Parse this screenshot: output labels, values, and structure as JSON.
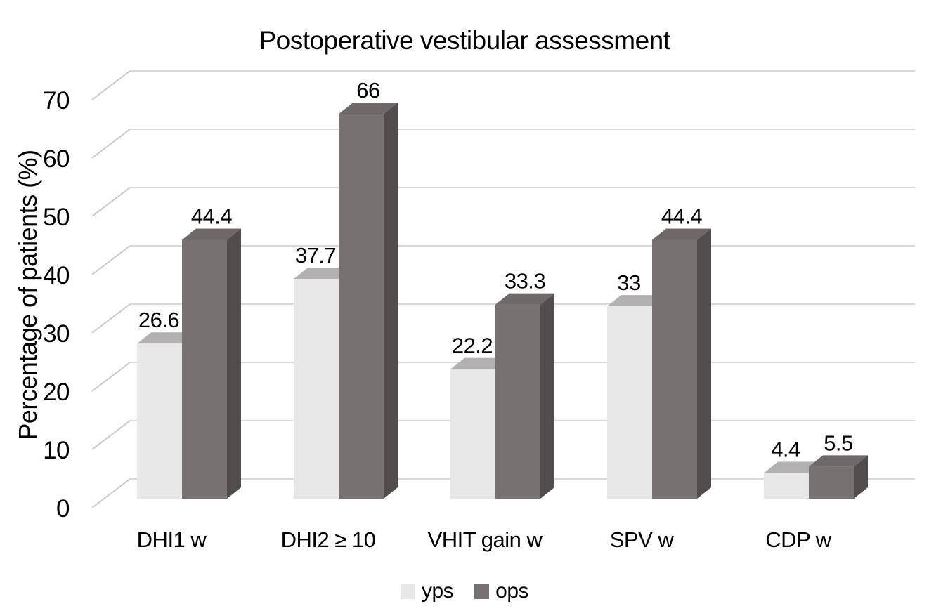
{
  "chart_data": {
    "type": "bar",
    "variant": "3d-clustered",
    "title": "Postoperative vestibular assessment",
    "ylabel": "Percentage of patients (%)",
    "xlabel": "",
    "categories": [
      "DHI1 w",
      "DHI2 ≥ 10",
      "VHIT gain w",
      "SPV w",
      "CDP w"
    ],
    "series": [
      {
        "name": "yps",
        "values": [
          26.6,
          37.7,
          22.2,
          33,
          4.4
        ],
        "color_front": "#e8e7e7",
        "color_top": "#b2b0b0",
        "color_side": "#cbc9c9"
      },
      {
        "name": "ops",
        "values": [
          44.4,
          66,
          33.3,
          44.4,
          5.5
        ],
        "color_front": "#777171",
        "color_top": "#6e6868",
        "color_side": "#524d4d"
      }
    ],
    "yticks": [
      0,
      10,
      20,
      30,
      40,
      50,
      60,
      70
    ],
    "ylim": [
      0,
      70
    ],
    "grid": true,
    "grid_color": "#d9d9d9",
    "tick_line_color": "#c9c9c9",
    "text_color": "#000000",
    "legend_position": "bottom"
  }
}
